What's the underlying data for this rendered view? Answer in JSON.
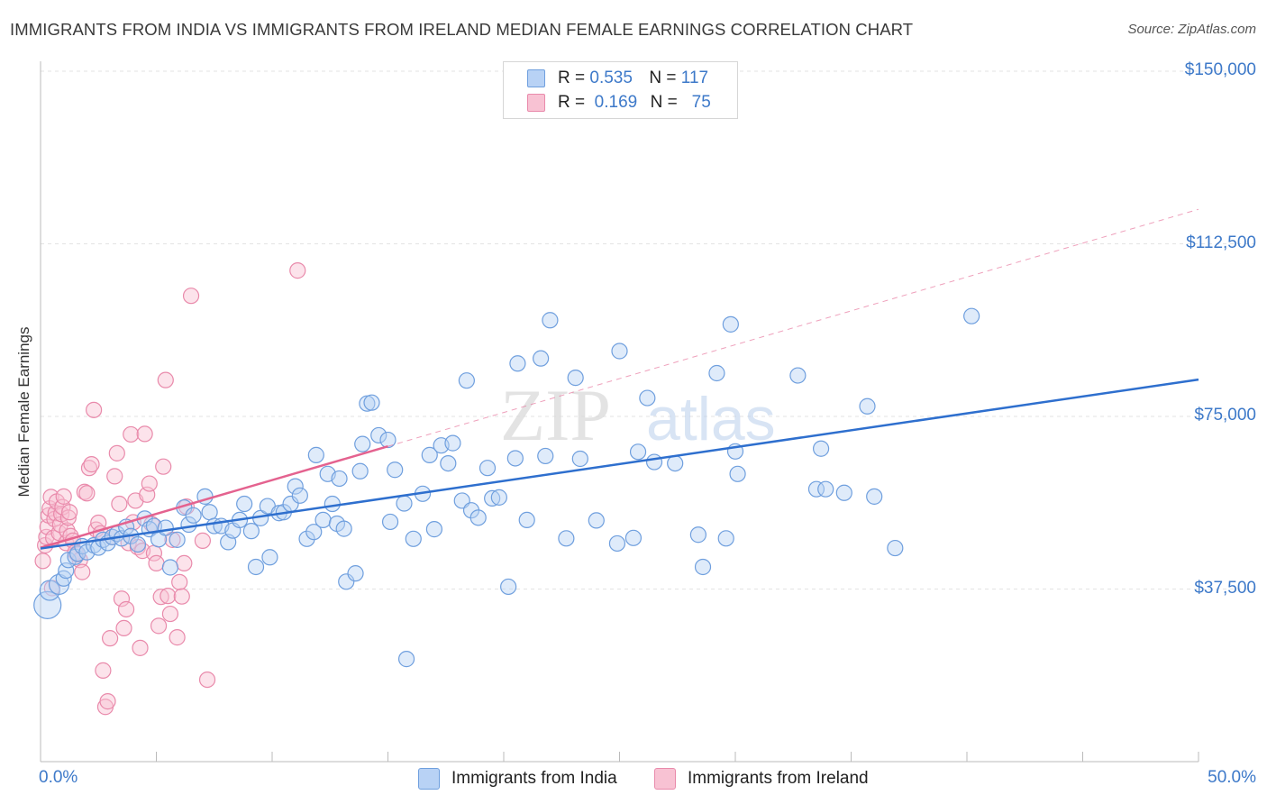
{
  "title": "IMMIGRANTS FROM INDIA VS IMMIGRANTS FROM IRELAND MEDIAN FEMALE EARNINGS CORRELATION CHART",
  "source": "Source: ZipAtlas.com",
  "watermark": "ZIPatlas",
  "legend": [
    {
      "r_label": "R =",
      "r_value": "0.535",
      "n_label": "N =",
      "n_value": "117"
    },
    {
      "r_label": "R =",
      "r_value": "0.169",
      "n_label": "N =",
      "n_value": "75"
    }
  ],
  "colors": {
    "india_fill": "#b8d2f5",
    "india_stroke": "#6f9fde",
    "india_line": "#2e6fce",
    "ireland_fill": "#f8c2d3",
    "ireland_stroke": "#e98aab",
    "ireland_line": "#e4628f",
    "axis_text": "#3d79c9",
    "grid": "#e3e3e3"
  },
  "chart_data": {
    "type": "scatter",
    "title": "IMMIGRANTS FROM INDIA VS IMMIGRANTS FROM IRELAND MEDIAN FEMALE EARNINGS CORRELATION CHART",
    "xlabel": "",
    "ylabel": "Median Female Earnings",
    "xlim": [
      0,
      50
    ],
    "ylim": [
      0,
      150000
    ],
    "x_tick_labels": [
      "0.0%",
      "50.0%"
    ],
    "y_ticks": [
      37500,
      75000,
      112500,
      150000
    ],
    "y_tick_labels": [
      "$37,500",
      "$75,000",
      "$112,500",
      "$150,000"
    ],
    "grid": true,
    "legend_position": "top-center",
    "series": [
      {
        "name": "Immigrants from India",
        "stats": {
          "R": 0.535,
          "N": 117
        },
        "trendline": {
          "x": [
            0,
            50
          ],
          "y": [
            46300,
            83000
          ]
        },
        "points": [
          [
            0.3,
            34000
          ],
          [
            0.4,
            37200
          ],
          [
            0.8,
            38500
          ],
          [
            1.0,
            39800
          ],
          [
            1.1,
            41500
          ],
          [
            1.2,
            43800
          ],
          [
            1.5,
            44500
          ],
          [
            1.6,
            45200
          ],
          [
            1.8,
            46800
          ],
          [
            2.0,
            45500
          ],
          [
            2.3,
            47000
          ],
          [
            2.5,
            46500
          ],
          [
            2.7,
            48200
          ],
          [
            2.9,
            47500
          ],
          [
            3.1,
            48800
          ],
          [
            3.3,
            49500
          ],
          [
            3.5,
            48500
          ],
          [
            3.7,
            51000
          ],
          [
            3.9,
            49000
          ],
          [
            4.2,
            47200
          ],
          [
            4.5,
            52800
          ],
          [
            4.7,
            50500
          ],
          [
            4.9,
            51200
          ],
          [
            5.1,
            48300
          ],
          [
            5.4,
            50800
          ],
          [
            5.6,
            42200
          ],
          [
            5.9,
            48200
          ],
          [
            6.2,
            55200
          ],
          [
            6.4,
            51500
          ],
          [
            6.6,
            53500
          ],
          [
            7.1,
            57600
          ],
          [
            7.3,
            54200
          ],
          [
            7.5,
            51200
          ],
          [
            7.8,
            51200
          ],
          [
            8.1,
            47700
          ],
          [
            8.3,
            50200
          ],
          [
            8.6,
            52500
          ],
          [
            8.8,
            56000
          ],
          [
            9.1,
            50100
          ],
          [
            9.3,
            42300
          ],
          [
            9.5,
            52900
          ],
          [
            9.9,
            44400
          ],
          [
            9.8,
            55500
          ],
          [
            10.3,
            54000
          ],
          [
            10.5,
            54200
          ],
          [
            10.8,
            56000
          ],
          [
            11.0,
            59800
          ],
          [
            11.2,
            57800
          ],
          [
            11.5,
            48400
          ],
          [
            11.8,
            49900
          ],
          [
            11.9,
            66600
          ],
          [
            12.2,
            52500
          ],
          [
            12.4,
            62500
          ],
          [
            12.6,
            56000
          ],
          [
            12.8,
            51700
          ],
          [
            12.9,
            61500
          ],
          [
            13.1,
            50600
          ],
          [
            13.2,
            39100
          ],
          [
            13.6,
            40900
          ],
          [
            13.8,
            63100
          ],
          [
            13.9,
            69000
          ],
          [
            14.1,
            77800
          ],
          [
            14.3,
            78000
          ],
          [
            14.6,
            70900
          ],
          [
            15.0,
            69900
          ],
          [
            15.1,
            52100
          ],
          [
            15.3,
            63400
          ],
          [
            15.7,
            56100
          ],
          [
            15.8,
            22300
          ],
          [
            16.1,
            48400
          ],
          [
            16.5,
            58200
          ],
          [
            16.8,
            66600
          ],
          [
            17.0,
            50500
          ],
          [
            17.3,
            68700
          ],
          [
            17.6,
            64800
          ],
          [
            17.8,
            69200
          ],
          [
            18.2,
            56700
          ],
          [
            18.4,
            82800
          ],
          [
            18.6,
            54600
          ],
          [
            18.9,
            53000
          ],
          [
            19.3,
            63800
          ],
          [
            19.5,
            57200
          ],
          [
            19.8,
            57400
          ],
          [
            20.2,
            38000
          ],
          [
            20.5,
            65900
          ],
          [
            20.6,
            86500
          ],
          [
            21.0,
            52500
          ],
          [
            21.6,
            87600
          ],
          [
            21.8,
            66400
          ],
          [
            22.0,
            95900
          ],
          [
            22.7,
            48500
          ],
          [
            23.1,
            83400
          ],
          [
            23.3,
            65800
          ],
          [
            24.0,
            52400
          ],
          [
            24.9,
            47400
          ],
          [
            25.0,
            89200
          ],
          [
            25.6,
            48600
          ],
          [
            25.8,
            67300
          ],
          [
            26.2,
            79000
          ],
          [
            26.5,
            65100
          ],
          [
            27.4,
            64800
          ],
          [
            28.4,
            49300
          ],
          [
            28.6,
            42300
          ],
          [
            29.2,
            84400
          ],
          [
            29.6,
            48500
          ],
          [
            29.8,
            95000
          ],
          [
            30.0,
            67400
          ],
          [
            30.1,
            62500
          ],
          [
            32.7,
            83900
          ],
          [
            33.5,
            59200
          ],
          [
            33.7,
            68000
          ],
          [
            33.9,
            59200
          ],
          [
            34.7,
            58400
          ],
          [
            35.7,
            77200
          ],
          [
            36.0,
            57600
          ],
          [
            36.9,
            46400
          ],
          [
            40.2,
            96800
          ]
        ]
      },
      {
        "name": "Immigrants from Ireland",
        "stats": {
          "R": 0.169,
          "N": 75
        },
        "trendline": {
          "x": [
            0,
            15
          ],
          "y": [
            46500,
            68500
          ]
        },
        "trendline_extended": {
          "x": [
            15,
            50
          ],
          "y": [
            68500,
            120000
          ]
        },
        "points": [
          [
            0.1,
            43600
          ],
          [
            0.2,
            47000
          ],
          [
            0.25,
            48800
          ],
          [
            0.3,
            51000
          ],
          [
            0.35,
            53500
          ],
          [
            0.4,
            55000
          ],
          [
            0.45,
            57500
          ],
          [
            0.5,
            37700
          ],
          [
            0.55,
            48600
          ],
          [
            0.6,
            52700
          ],
          [
            0.65,
            54000
          ],
          [
            0.7,
            56500
          ],
          [
            0.8,
            49700
          ],
          [
            0.85,
            51500
          ],
          [
            0.9,
            53800
          ],
          [
            0.95,
            55300
          ],
          [
            1.0,
            57600
          ],
          [
            1.1,
            47500
          ],
          [
            1.15,
            50200
          ],
          [
            1.2,
            53000
          ],
          [
            1.25,
            54200
          ],
          [
            1.3,
            49000
          ],
          [
            1.4,
            48000
          ],
          [
            1.5,
            45500
          ],
          [
            1.6,
            45000
          ],
          [
            1.7,
            43800
          ],
          [
            1.8,
            41200
          ],
          [
            1.9,
            58600
          ],
          [
            2.0,
            58300
          ],
          [
            2.1,
            63800
          ],
          [
            2.2,
            64600
          ],
          [
            2.3,
            76400
          ],
          [
            2.4,
            50400
          ],
          [
            2.5,
            51900
          ],
          [
            2.6,
            49600
          ],
          [
            2.7,
            19800
          ],
          [
            2.8,
            11900
          ],
          [
            2.9,
            13100
          ],
          [
            3.0,
            26800
          ],
          [
            3.1,
            48800
          ],
          [
            3.2,
            62000
          ],
          [
            3.3,
            67000
          ],
          [
            3.4,
            56000
          ],
          [
            3.5,
            35400
          ],
          [
            3.6,
            29000
          ],
          [
            3.7,
            33100
          ],
          [
            3.8,
            47500
          ],
          [
            3.9,
            71100
          ],
          [
            4.0,
            52000
          ],
          [
            4.1,
            56700
          ],
          [
            4.2,
            46600
          ],
          [
            4.3,
            24700
          ],
          [
            4.4,
            45800
          ],
          [
            4.5,
            71200
          ],
          [
            4.6,
            58000
          ],
          [
            4.7,
            60400
          ],
          [
            4.8,
            51600
          ],
          [
            4.9,
            45300
          ],
          [
            5.0,
            43100
          ],
          [
            5.1,
            29500
          ],
          [
            5.2,
            35800
          ],
          [
            5.3,
            64100
          ],
          [
            5.4,
            82900
          ],
          [
            5.5,
            36000
          ],
          [
            5.6,
            32100
          ],
          [
            5.7,
            48200
          ],
          [
            5.9,
            27000
          ],
          [
            6.0,
            39000
          ],
          [
            6.1,
            35900
          ],
          [
            6.2,
            43100
          ],
          [
            6.3,
            55400
          ],
          [
            6.5,
            101200
          ],
          [
            7.0,
            48000
          ],
          [
            7.2,
            17800
          ],
          [
            11.1,
            106700
          ]
        ]
      }
    ]
  }
}
